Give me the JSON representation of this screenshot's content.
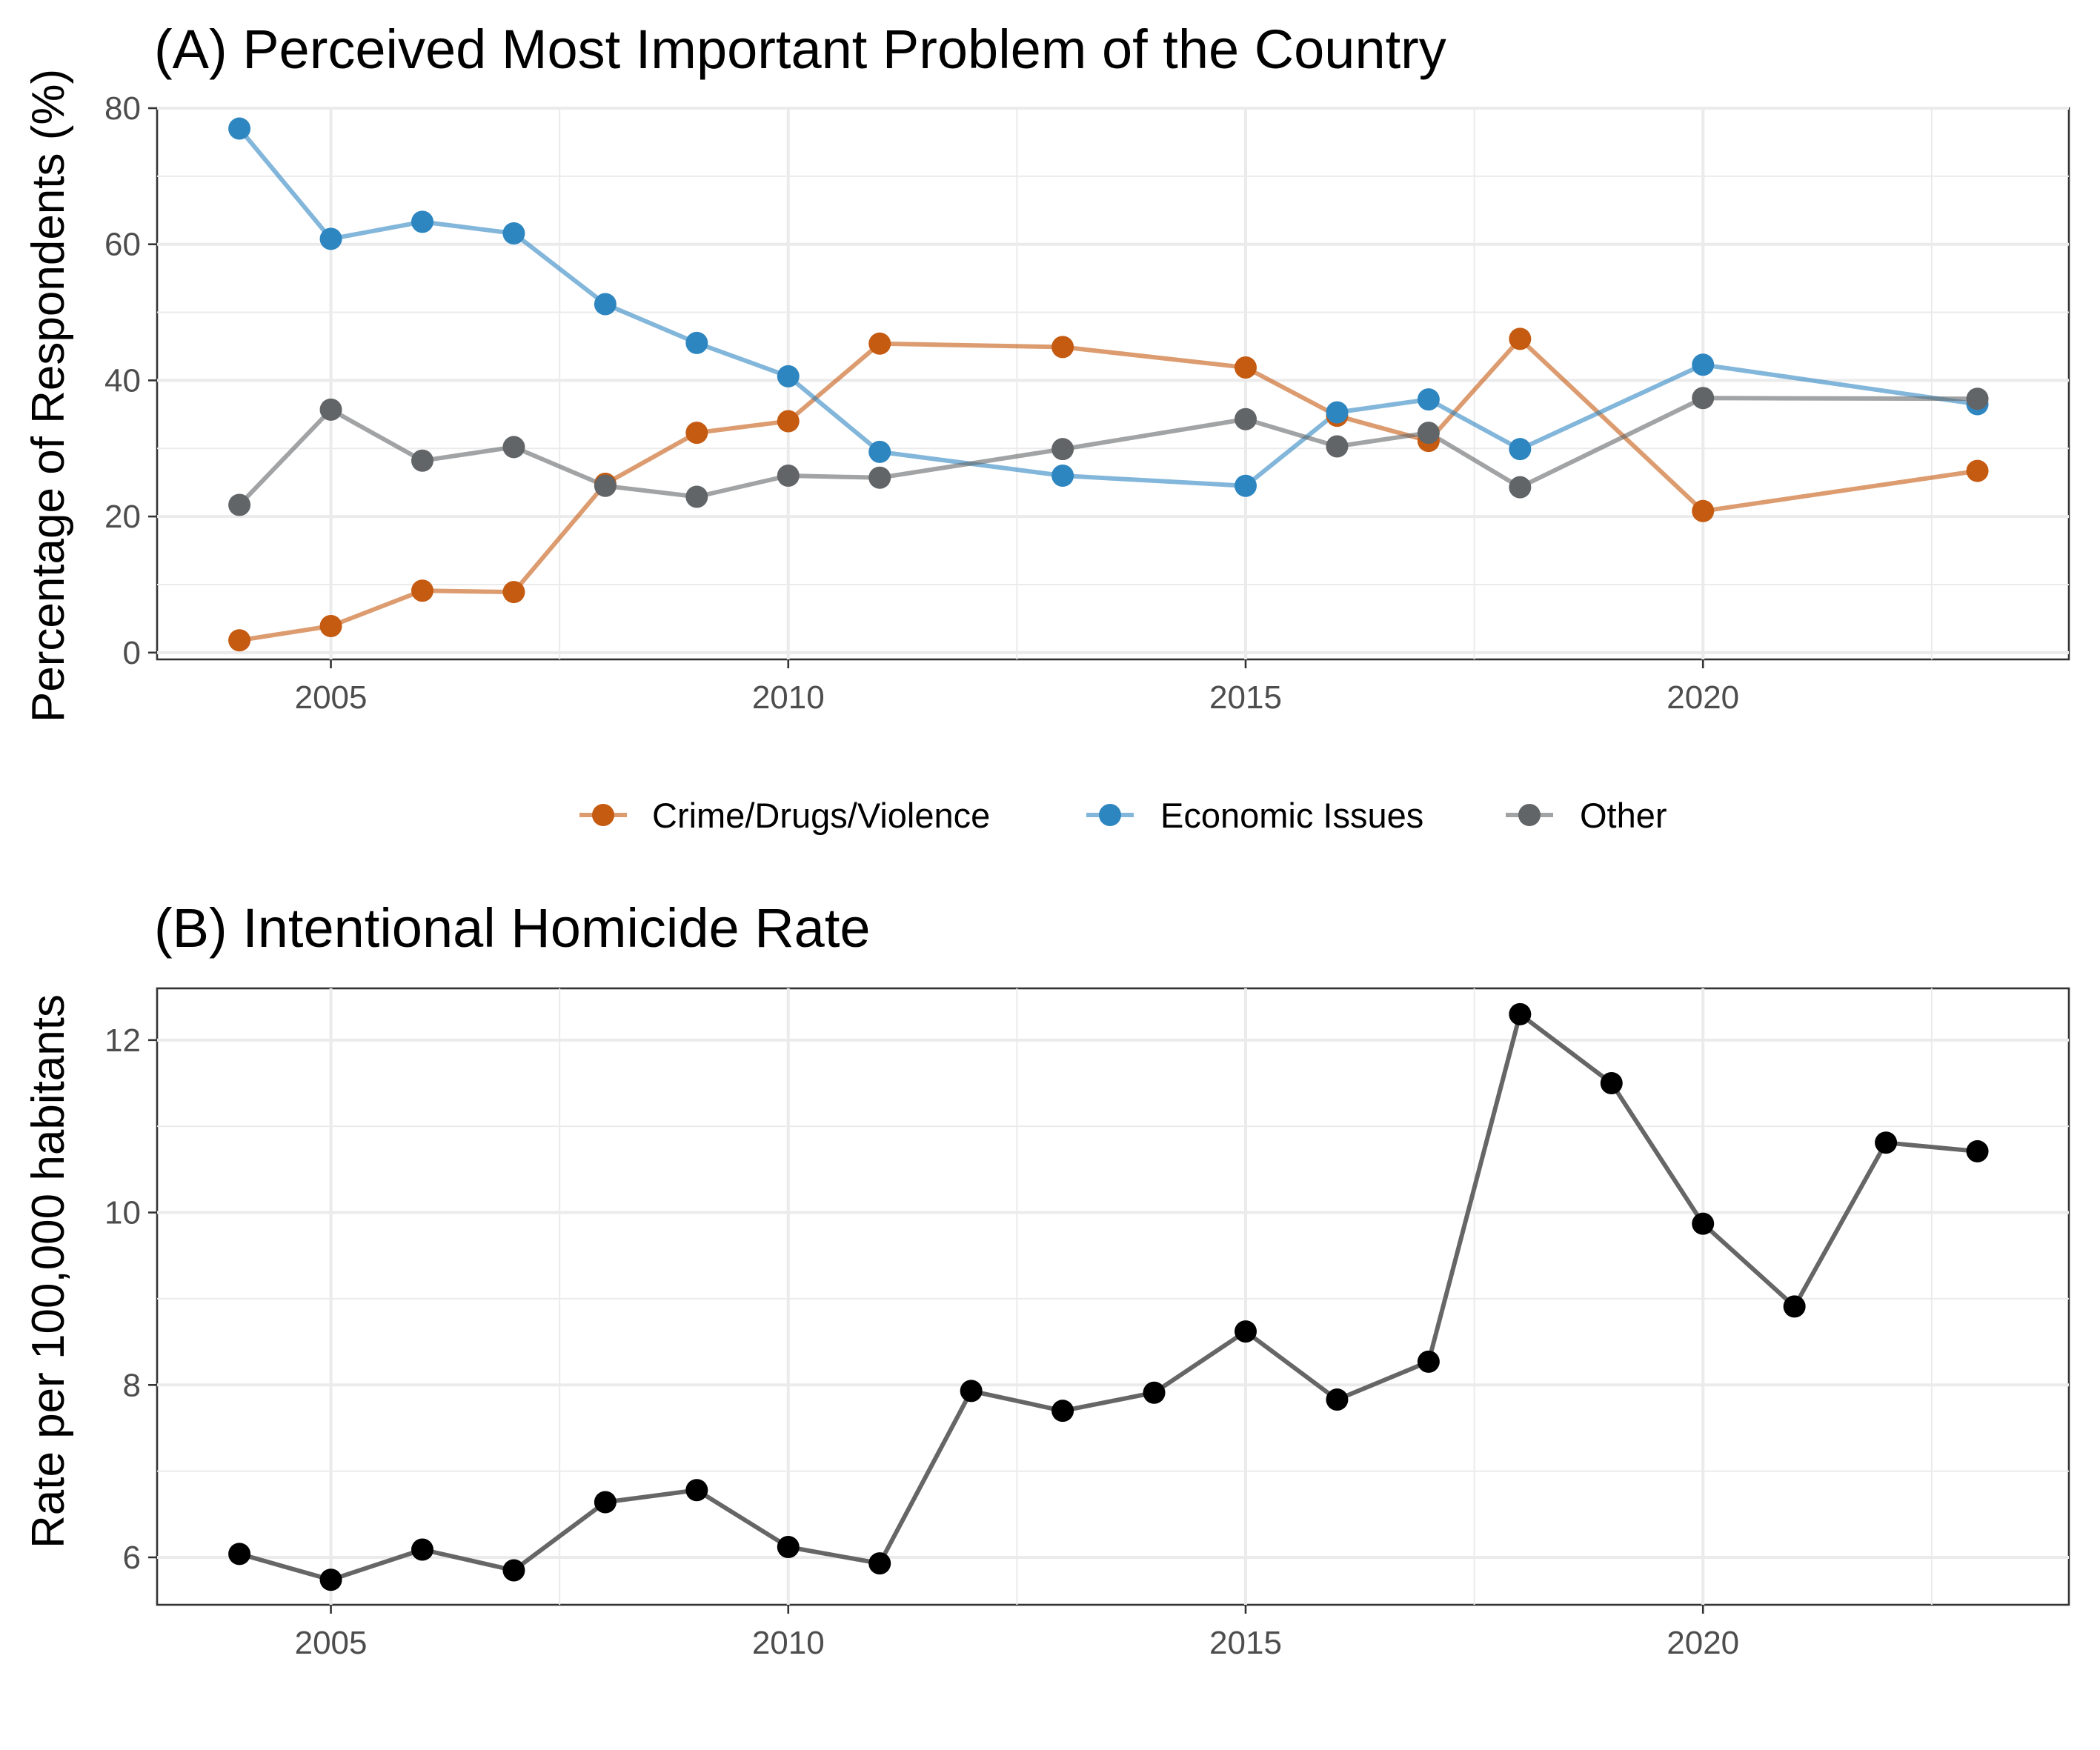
{
  "chart_data": [
    {
      "type": "line",
      "title": "(A) Perceived Most Important Problem of the Country",
      "xlabel": "",
      "ylabel": "Percentage of Respondents (%)",
      "xlim": [
        2003.1,
        2024.0
      ],
      "ylim": [
        -1,
        80
      ],
      "xticks": [
        2005,
        2010,
        2015,
        2020
      ],
      "yticks": [
        0,
        20,
        40,
        60,
        80
      ],
      "grid": true,
      "legend": "bottom",
      "series": [
        {
          "name": "Crime/Drugs/Violence",
          "color": "#C55A11",
          "x": [
            2004,
            2005,
            2006,
            2007,
            2008,
            2009,
            2010,
            2011,
            2013,
            2015,
            2016,
            2017,
            2018,
            2020,
            2023
          ],
          "y": [
            1.8,
            3.9,
            9.1,
            8.9,
            24.8,
            32.3,
            34.0,
            45.4,
            44.9,
            41.9,
            34.8,
            31.1,
            46.1,
            20.8,
            26.7
          ]
        },
        {
          "name": "Economic Issues",
          "color": "#2E86C1",
          "x": [
            2004,
            2005,
            2006,
            2007,
            2008,
            2009,
            2010,
            2011,
            2013,
            2015,
            2016,
            2017,
            2018,
            2020,
            2023
          ],
          "y": [
            77.0,
            60.8,
            63.3,
            61.6,
            51.2,
            45.5,
            40.6,
            29.5,
            26.0,
            24.5,
            35.3,
            37.2,
            29.9,
            42.3,
            36.5
          ]
        },
        {
          "name": "Other",
          "color": "#626567",
          "x": [
            2004,
            2005,
            2006,
            2007,
            2008,
            2009,
            2010,
            2011,
            2013,
            2015,
            2016,
            2017,
            2018,
            2020,
            2023
          ],
          "y": [
            21.7,
            35.7,
            28.2,
            30.2,
            24.5,
            22.9,
            26.0,
            25.7,
            29.9,
            34.3,
            30.3,
            32.3,
            24.3,
            37.4,
            37.3
          ]
        }
      ]
    },
    {
      "type": "line",
      "title": "(B) Intentional Homicide Rate",
      "xlabel": "",
      "ylabel": "Rate per 100,000 habitants",
      "xlim": [
        2003.1,
        2024.0
      ],
      "ylim": [
        5.45,
        12.6
      ],
      "xticks": [
        2005,
        2010,
        2015,
        2020
      ],
      "yticks": [
        6,
        8,
        10,
        12
      ],
      "grid": true,
      "legend": "none",
      "series": [
        {
          "name": "",
          "color": "#000000",
          "x": [
            2004,
            2005,
            2006,
            2007,
            2008,
            2009,
            2010,
            2011,
            2012,
            2013,
            2014,
            2015,
            2016,
            2017,
            2018,
            2019,
            2020,
            2021,
            2022,
            2023
          ],
          "y": [
            6.04,
            5.74,
            6.09,
            5.85,
            6.64,
            6.78,
            6.12,
            5.93,
            7.93,
            7.7,
            7.91,
            8.62,
            7.83,
            8.27,
            12.3,
            11.5,
            9.87,
            8.91,
            10.81,
            10.71
          ]
        }
      ]
    }
  ]
}
